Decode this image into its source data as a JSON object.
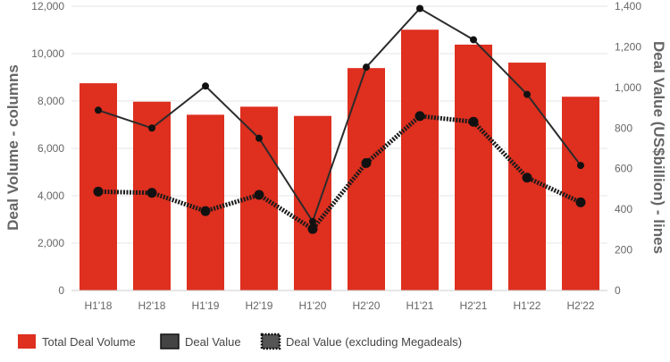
{
  "chart_data": {
    "type": "bar",
    "categories": [
      "H1'18",
      "H2'18",
      "H1'19",
      "H2'19",
      "H1'20",
      "H2'20",
      "H1'21",
      "H2'21",
      "H1'22",
      "H2'22"
    ],
    "bar_series": {
      "name": "Total Deal Volume",
      "axis": "left",
      "color": "#de2f1f",
      "values": [
        8750,
        7970,
        7420,
        7760,
        7370,
        9390,
        11010,
        10380,
        9620,
        8180
      ]
    },
    "line_series": [
      {
        "name": "Deal Value",
        "axis": "right",
        "color": "#2b2b2b",
        "style": "solid",
        "values": [
          888,
          800,
          1007,
          750,
          340,
          1100,
          1389,
          1235,
          966,
          616
        ]
      },
      {
        "name": "Deal Value (excluding Megadeals)",
        "axis": "right",
        "color": "#1a1a1a",
        "style": "dotted",
        "values": [
          487,
          481,
          391,
          471,
          303,
          628,
          859,
          831,
          556,
          434
        ]
      }
    ],
    "y_left": {
      "label": "Deal Volume - columns",
      "min": 0,
      "max": 12000,
      "ticks": [
        "0",
        "2,000",
        "4,000",
        "6,000",
        "8,000",
        "10,000",
        "12,000"
      ]
    },
    "y_right": {
      "label": "Deal Value (US$billion) - lines",
      "min": 0,
      "max": 1400,
      "ticks": [
        "0",
        "200",
        "400",
        "600",
        "800",
        "1,000",
        "1,200",
        "1,400"
      ]
    },
    "grid": true,
    "legend_position": "bottom-left"
  },
  "legend": {
    "items": [
      {
        "label": "Total Deal Volume",
        "swatch": "bar"
      },
      {
        "label": "Deal Value",
        "swatch": "solid"
      },
      {
        "label": "Deal Value (excluding Megadeals)",
        "swatch": "dotted"
      }
    ]
  }
}
